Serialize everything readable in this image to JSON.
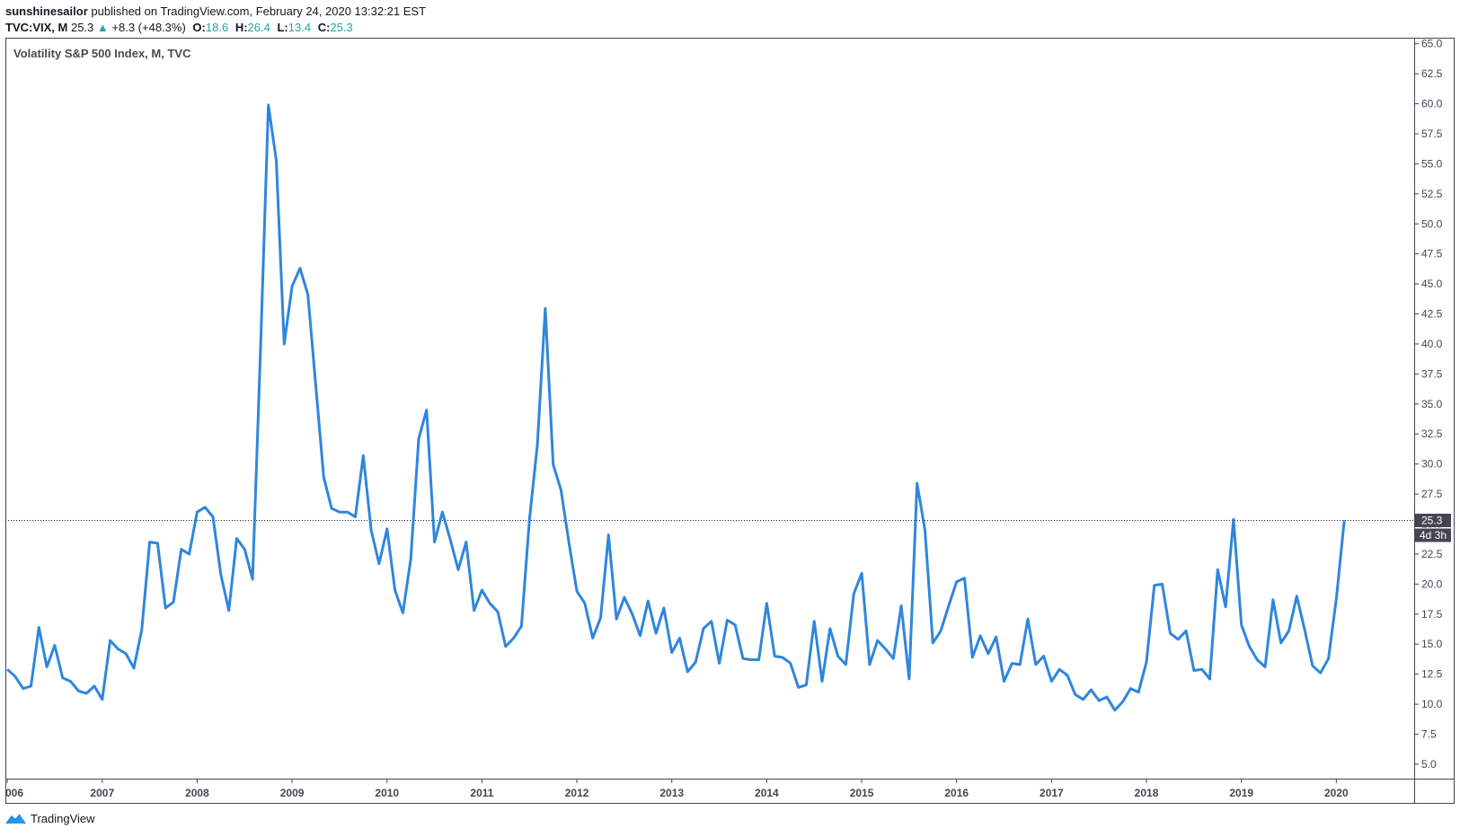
{
  "header": {
    "author": "sunshinesailor",
    "published": "published on TradingView.com, February 24, 2020 13:32:21 EST",
    "symbol": "TVC:VIX, M",
    "last": "25.3",
    "change_arrow": "▲",
    "change": "+8.3 (+48.3%)",
    "o_label": "O:",
    "o_value": "18.6",
    "h_label": "H:",
    "h_value": "26.4",
    "l_label": "L:",
    "l_value": "13.4",
    "c_label": "C:",
    "c_value": "25.3"
  },
  "brand": {
    "name": "TradingView"
  },
  "chart_data": {
    "type": "line",
    "title": "Volatility S&P 500 Index, M, TVC",
    "x_tick_labels": [
      "006",
      "2007",
      "2008",
      "2009",
      "2010",
      "2011",
      "2012",
      "2013",
      "2014",
      "2015",
      "2016",
      "2017",
      "2018",
      "2019",
      "2020"
    ],
    "y_tick_labels": [
      "5.0",
      "7.5",
      "10.0",
      "12.5",
      "15.0",
      "17.5",
      "20.0",
      "22.5",
      "25.0",
      "27.5",
      "30.0",
      "32.5",
      "35.0",
      "37.5",
      "40.0",
      "42.5",
      "45.0",
      "47.5",
      "50.0",
      "52.5",
      "55.0",
      "57.5",
      "60.0",
      "62.5",
      "65.0"
    ],
    "ylim": [
      3.8,
      65.5
    ],
    "xlim": [
      2005.98,
      2020.82
    ],
    "last_value_label": "25.3",
    "countdown_label": "4d 3h",
    "price_line_value": 25.3,
    "line_color": "#2f86dd",
    "series": [
      {
        "x_start": 2006.0,
        "x_step_months": 1,
        "values": [
          12.9,
          12.3,
          11.3,
          11.5,
          16.4,
          13.1,
          14.9,
          12.2,
          11.9,
          11.1,
          10.9,
          11.5,
          10.4,
          15.3,
          14.6,
          14.2,
          13.0,
          16.2,
          23.5,
          23.4,
          18.0,
          18.5,
          22.9,
          22.5,
          26.0,
          26.4,
          25.6,
          20.8,
          17.8,
          23.8,
          22.9,
          20.4,
          39.4,
          59.9,
          55.3,
          40.0,
          44.8,
          46.3,
          44.1,
          36.5,
          28.9,
          26.3,
          26.0,
          26.0,
          25.6,
          30.7,
          24.5,
          21.7,
          24.6,
          19.5,
          17.6,
          22.1,
          32.1,
          34.5,
          23.5,
          26.0,
          23.7,
          21.2,
          23.5,
          17.8,
          19.5,
          18.4,
          17.7,
          14.8,
          15.5,
          16.5,
          25.3,
          31.6,
          42.96,
          29.96,
          27.8,
          23.4,
          19.4,
          18.4,
          15.5,
          17.2,
          24.1,
          17.1,
          18.9,
          17.5,
          15.7,
          18.6,
          15.9,
          18.0,
          14.3,
          15.5,
          12.7,
          13.5,
          16.3,
          16.9,
          13.4,
          17.0,
          16.6,
          13.8,
          13.7,
          13.7,
          18.4,
          14.0,
          13.9,
          13.4,
          11.4,
          11.6,
          16.9,
          11.9,
          16.3,
          14.0,
          13.3,
          19.2,
          20.9,
          13.3,
          15.3,
          14.6,
          13.8,
          18.2,
          12.1,
          28.4,
          24.5,
          15.1,
          16.1,
          18.2,
          20.2,
          20.5,
          13.9,
          15.7,
          14.2,
          15.6,
          11.9,
          13.4,
          13.3,
          17.1,
          13.3,
          14.0,
          11.9,
          12.9,
          12.4,
          10.8,
          10.4,
          11.2,
          10.3,
          10.6,
          9.5,
          10.2,
          11.3,
          11.0,
          13.5,
          19.9,
          20.0,
          15.9,
          15.4,
          16.1,
          12.8,
          12.9,
          12.1,
          21.2,
          18.1,
          25.4,
          16.6,
          14.8,
          13.7,
          13.1,
          18.7,
          15.1,
          16.1,
          19.0,
          16.2,
          13.2,
          12.6,
          13.8,
          18.8,
          25.3
        ]
      }
    ]
  }
}
